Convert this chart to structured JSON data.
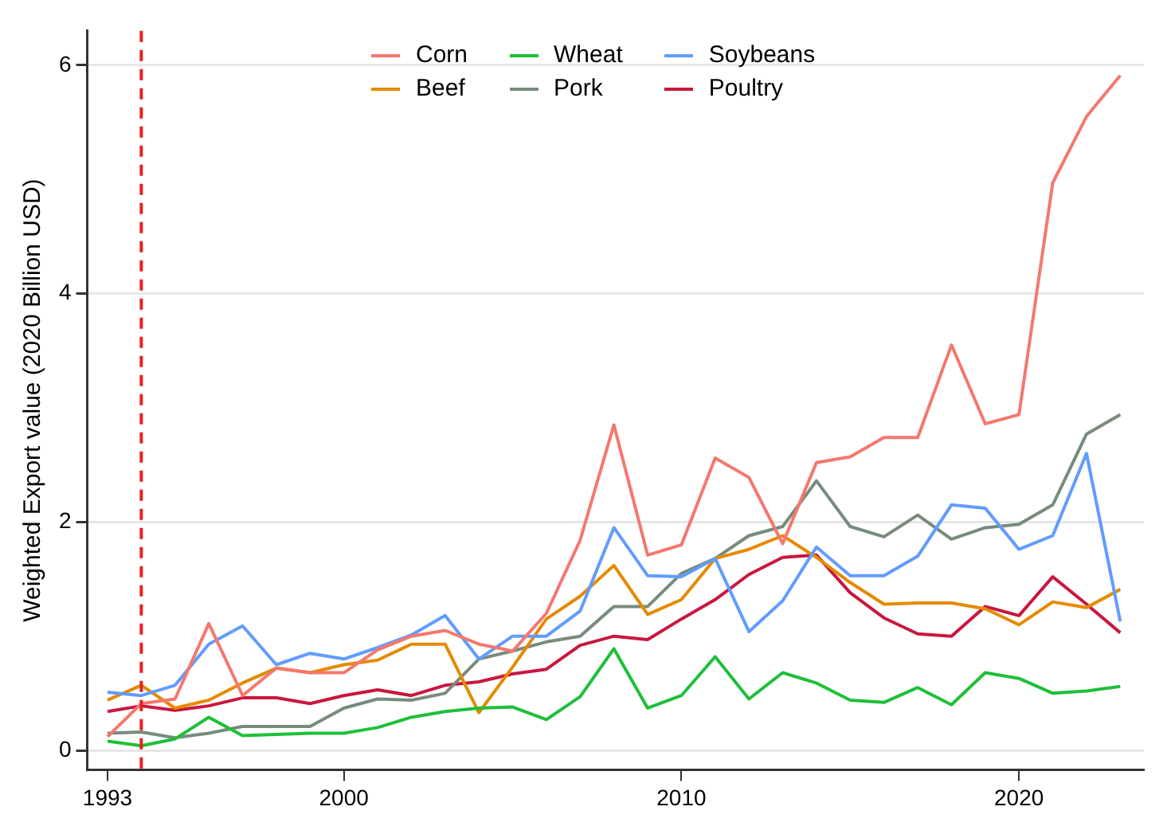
{
  "chart_data": {
    "type": "line",
    "ylabel": "Weighted Export value (2020 Billion USD)",
    "x": [
      1993,
      1994,
      1995,
      1996,
      1997,
      1998,
      1999,
      2000,
      2001,
      2002,
      2003,
      2004,
      2005,
      2006,
      2007,
      2008,
      2009,
      2010,
      2011,
      2012,
      2013,
      2014,
      2015,
      2016,
      2017,
      2018,
      2019,
      2020,
      2021,
      2022,
      2023
    ],
    "xlim": [
      1992.4,
      2023.7
    ],
    "xticks": [
      1993,
      2000,
      2010,
      2020
    ],
    "ylim": [
      -0.17,
      6.3
    ],
    "yticks": [
      0,
      2,
      4,
      6
    ],
    "grid": "y",
    "legend": "top",
    "marker": "none",
    "line_style": "solid",
    "series": [
      {
        "name": "Corn",
        "color": "#f4786e",
        "values": [
          0.12,
          0.41,
          0.45,
          1.11,
          0.48,
          0.72,
          0.68,
          0.68,
          0.88,
          1.0,
          1.05,
          0.93,
          0.87,
          1.2,
          1.84,
          2.85,
          1.71,
          1.8,
          2.56,
          2.39,
          1.81,
          2.52,
          2.57,
          2.74,
          2.74,
          3.55,
          2.86,
          2.94,
          4.97,
          5.55,
          5.91
        ]
      },
      {
        "name": "Wheat",
        "color": "#1fbf3a",
        "values": [
          0.08,
          0.04,
          0.1,
          0.29,
          0.13,
          0.14,
          0.15,
          0.15,
          0.2,
          0.29,
          0.34,
          0.37,
          0.38,
          0.27,
          0.47,
          0.89,
          0.37,
          0.48,
          0.82,
          0.45,
          0.68,
          0.59,
          0.44,
          0.42,
          0.55,
          0.4,
          0.68,
          0.63,
          0.5,
          0.52,
          0.56
        ]
      },
      {
        "name": "Soybeans",
        "color": "#619cff",
        "values": [
          0.51,
          0.48,
          0.57,
          0.93,
          1.09,
          0.75,
          0.85,
          0.8,
          0.9,
          1.01,
          1.18,
          0.8,
          1.0,
          1.0,
          1.22,
          1.95,
          1.53,
          1.52,
          1.68,
          1.04,
          1.31,
          1.78,
          1.53,
          1.53,
          1.7,
          2.15,
          2.12,
          1.76,
          1.88,
          2.6,
          1.13
        ]
      },
      {
        "name": "Beef",
        "color": "#e58a00",
        "values": [
          0.44,
          0.57,
          0.37,
          0.44,
          0.59,
          0.72,
          0.68,
          0.75,
          0.79,
          0.93,
          0.93,
          0.33,
          0.73,
          1.15,
          1.35,
          1.62,
          1.19,
          1.32,
          1.68,
          1.76,
          1.88,
          1.69,
          1.47,
          1.28,
          1.29,
          1.29,
          1.24,
          1.1,
          1.3,
          1.25,
          1.41
        ]
      },
      {
        "name": "Pork",
        "color": "#778c7c",
        "values": [
          0.15,
          0.16,
          0.11,
          0.15,
          0.21,
          0.21,
          0.21,
          0.37,
          0.45,
          0.44,
          0.5,
          0.8,
          0.87,
          0.95,
          1.0,
          1.26,
          1.26,
          1.55,
          1.68,
          1.88,
          1.96,
          2.36,
          1.96,
          1.87,
          2.06,
          1.85,
          1.95,
          1.98,
          2.15,
          2.77,
          2.94
        ]
      },
      {
        "name": "Poultry",
        "color": "#c8173f",
        "values": [
          0.34,
          0.39,
          0.35,
          0.39,
          0.46,
          0.46,
          0.41,
          0.48,
          0.53,
          0.48,
          0.57,
          0.6,
          0.67,
          0.71,
          0.92,
          1.0,
          0.97,
          1.15,
          1.32,
          1.54,
          1.69,
          1.71,
          1.38,
          1.16,
          1.02,
          1.0,
          1.26,
          1.18,
          1.52,
          1.28,
          1.03
        ]
      }
    ],
    "ref_lines": [
      {
        "axis": "x",
        "value": 1994,
        "color": "#e8211c",
        "line_style": "dashed"
      }
    ]
  }
}
